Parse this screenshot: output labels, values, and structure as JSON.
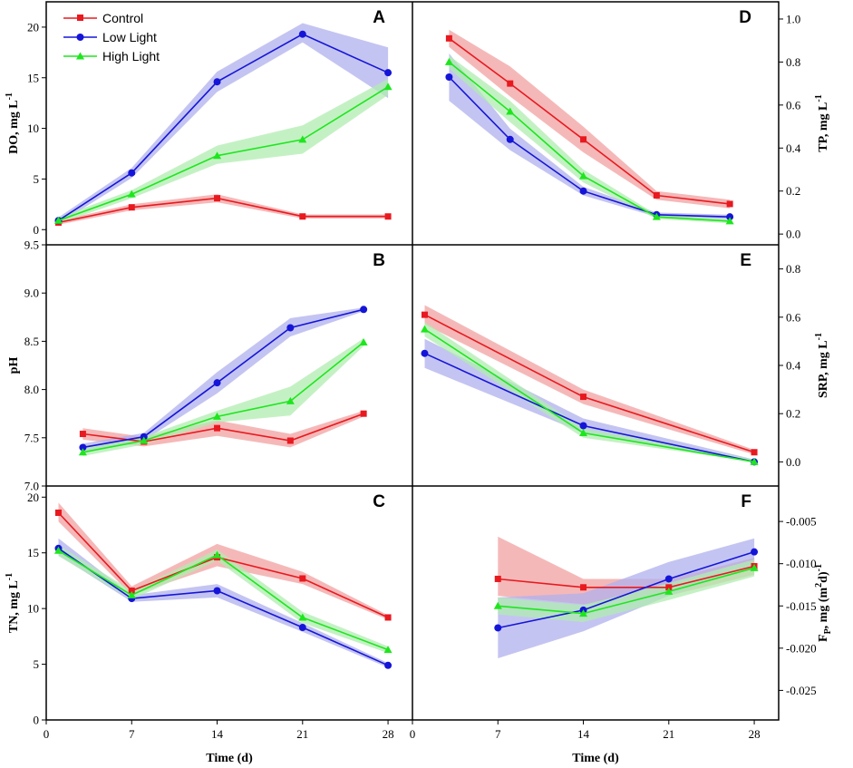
{
  "colors": {
    "control": "#e8191f",
    "low_light": "#1515d8",
    "high_light": "#1ee61e",
    "control_band": "#f2a0a0",
    "low_band": "#b0b0ee",
    "high_band": "#b0ecb0"
  },
  "legend": [
    "Control",
    "Low Light",
    "High Light"
  ],
  "chart_data": [
    {
      "type": "line",
      "panel": "A",
      "ylabel": "DO, mg L",
      "ylabel_sup": "-1",
      "ylim": [
        -1.5,
        22.5
      ],
      "yticks": [
        0,
        5,
        10,
        15,
        20
      ],
      "ytick_labels": [
        "0",
        "5",
        "10",
        "15",
        "20"
      ],
      "xlim": [
        0,
        30
      ],
      "xlabel": "",
      "series": [
        {
          "name": "Control",
          "marker": "square",
          "x": [
            1,
            7,
            14,
            21,
            28
          ],
          "y": [
            0.7,
            2.2,
            3.1,
            1.3,
            1.3
          ],
          "lo": [
            0.5,
            1.9,
            2.7,
            1.1,
            1.1
          ],
          "hi": [
            0.9,
            2.5,
            3.5,
            1.5,
            1.5
          ]
        },
        {
          "name": "Low Light",
          "marker": "circle",
          "x": [
            1,
            7,
            14,
            21,
            28
          ],
          "y": [
            0.9,
            5.6,
            14.6,
            19.3,
            15.5
          ],
          "lo": [
            0.6,
            5.1,
            13.6,
            18.5,
            13.0
          ],
          "hi": [
            1.2,
            6.1,
            15.6,
            20.4,
            18.0
          ]
        },
        {
          "name": "High Light",
          "marker": "triangle",
          "x": [
            1,
            7,
            14,
            21,
            28
          ],
          "y": [
            0.9,
            3.5,
            7.3,
            8.9,
            14.1
          ],
          "lo": [
            0.6,
            3.1,
            6.5,
            7.5,
            13.3
          ],
          "hi": [
            1.2,
            3.9,
            8.3,
            10.3,
            14.9
          ]
        }
      ]
    },
    {
      "type": "line",
      "panel": "B",
      "ylabel": "pH",
      "ylabel_sup": "",
      "ylim": [
        7.0,
        9.5
      ],
      "yticks": [
        7.0,
        7.5,
        8.0,
        8.5,
        9.0,
        9.5
      ],
      "ytick_labels": [
        "7.0",
        "7.5",
        "8.0",
        "8.5",
        "9.0",
        "9.5"
      ],
      "xlim": [
        0,
        30
      ],
      "xlabel": "",
      "series": [
        {
          "name": "Control",
          "marker": "square",
          "x": [
            3,
            8,
            14,
            20,
            26
          ],
          "y": [
            7.54,
            7.46,
            7.6,
            7.47,
            7.75
          ],
          "lo": [
            7.48,
            7.41,
            7.52,
            7.4,
            7.72
          ],
          "hi": [
            7.6,
            7.51,
            7.68,
            7.54,
            7.78
          ]
        },
        {
          "name": "Low Light",
          "marker": "circle",
          "x": [
            3,
            8,
            14,
            20,
            26
          ],
          "y": [
            7.4,
            7.51,
            8.07,
            8.64,
            8.83
          ],
          "lo": [
            7.36,
            7.47,
            7.96,
            8.55,
            8.81
          ],
          "hi": [
            7.44,
            7.55,
            8.18,
            8.74,
            8.85
          ]
        },
        {
          "name": "High Light",
          "marker": "triangle",
          "x": [
            3,
            8,
            14,
            20,
            26
          ],
          "y": [
            7.35,
            7.47,
            7.72,
            7.88,
            8.49
          ],
          "lo": [
            7.31,
            7.43,
            7.66,
            7.73,
            8.45
          ],
          "hi": [
            7.39,
            7.51,
            7.78,
            8.03,
            8.53
          ]
        }
      ]
    },
    {
      "type": "line",
      "panel": "C",
      "ylabel": "TN, mg L",
      "ylabel_sup": "-1",
      "ylim": [
        0,
        21
      ],
      "yticks": [
        0,
        5,
        10,
        15,
        20
      ],
      "ytick_labels": [
        "0",
        "5",
        "10",
        "15",
        "20"
      ],
      "xlim": [
        0,
        30
      ],
      "xlabel": "Time (d)",
      "xticks": [
        0,
        7,
        14,
        21,
        28
      ],
      "xtick_labels": [
        "0",
        "7",
        "14",
        "21",
        "28"
      ],
      "series": [
        {
          "name": "Control",
          "marker": "square",
          "x": [
            1,
            7,
            14,
            21,
            28
          ],
          "y": [
            18.6,
            11.6,
            14.6,
            12.7,
            9.2
          ],
          "lo": [
            17.8,
            11.2,
            13.8,
            12.2,
            9.0
          ],
          "hi": [
            19.5,
            12.0,
            15.8,
            13.3,
            9.4
          ]
        },
        {
          "name": "Low Light",
          "marker": "circle",
          "x": [
            1,
            7,
            14,
            21,
            28
          ],
          "y": [
            15.4,
            10.9,
            11.6,
            8.3,
            4.9
          ],
          "lo": [
            14.8,
            10.6,
            11.0,
            7.9,
            4.7
          ],
          "hi": [
            16.3,
            11.2,
            12.2,
            8.7,
            5.1
          ]
        },
        {
          "name": "High Light",
          "marker": "triangle",
          "x": [
            1,
            7,
            14,
            21,
            28
          ],
          "y": [
            15.2,
            11.2,
            14.8,
            9.2,
            6.3
          ],
          "lo": [
            14.7,
            10.8,
            14.3,
            8.7,
            6.0
          ],
          "hi": [
            15.7,
            11.6,
            15.3,
            9.7,
            6.6
          ]
        }
      ]
    },
    {
      "type": "line",
      "panel": "D",
      "ylabel": "TP, mg L",
      "ylabel_sup": "-1",
      "ylim": [
        -0.05,
        1.08
      ],
      "yticks": [
        0,
        0.2,
        0.4,
        0.6,
        0.8,
        1.0
      ],
      "ytick_labels": [
        "0.0",
        "0.2",
        "0.4",
        "0.6",
        "0.8",
        "1.0"
      ],
      "xlim": [
        0,
        30
      ],
      "xlabel": "",
      "series": [
        {
          "name": "Control",
          "marker": "square",
          "x": [
            3,
            8,
            14,
            20,
            26
          ],
          "y": [
            0.91,
            0.7,
            0.44,
            0.18,
            0.14
          ],
          "lo": [
            0.87,
            0.64,
            0.38,
            0.16,
            0.12
          ],
          "hi": [
            0.95,
            0.78,
            0.5,
            0.2,
            0.16
          ]
        },
        {
          "name": "Low Light",
          "marker": "circle",
          "x": [
            3,
            8,
            14,
            20,
            26
          ],
          "y": [
            0.73,
            0.44,
            0.2,
            0.09,
            0.08
          ],
          "lo": [
            0.62,
            0.39,
            0.18,
            0.08,
            0.07
          ],
          "hi": [
            0.84,
            0.49,
            0.22,
            0.1,
            0.09
          ]
        },
        {
          "name": "High Light",
          "marker": "triangle",
          "x": [
            3,
            8,
            14,
            20,
            26
          ],
          "y": [
            0.8,
            0.57,
            0.27,
            0.08,
            0.06
          ],
          "lo": [
            0.77,
            0.52,
            0.24,
            0.07,
            0.05
          ],
          "hi": [
            0.83,
            0.62,
            0.3,
            0.09,
            0.07
          ]
        }
      ]
    },
    {
      "type": "line",
      "panel": "E",
      "ylabel": "SRP, mg L",
      "ylabel_sup": "-1",
      "ylim": [
        -0.1,
        0.9
      ],
      "yticks": [
        0,
        0.2,
        0.4,
        0.6,
        0.8
      ],
      "ytick_labels": [
        "0.0",
        "0.2",
        "0.4",
        "0.6",
        "0.8"
      ],
      "xlim": [
        0,
        30
      ],
      "xlabel": "",
      "series": [
        {
          "name": "Control",
          "marker": "square",
          "x": [
            1,
            14,
            28
          ],
          "y": [
            0.61,
            0.27,
            0.04
          ],
          "lo": [
            0.57,
            0.24,
            0.03
          ],
          "hi": [
            0.65,
            0.3,
            0.05
          ]
        },
        {
          "name": "Low Light",
          "marker": "circle",
          "x": [
            1,
            14,
            28
          ],
          "y": [
            0.45,
            0.15,
            0.0
          ],
          "lo": [
            0.39,
            0.12,
            0.0
          ],
          "hi": [
            0.51,
            0.18,
            0.01
          ]
        },
        {
          "name": "High Light",
          "marker": "triangle",
          "x": [
            1,
            14,
            28
          ],
          "y": [
            0.55,
            0.12,
            0.0
          ],
          "lo": [
            0.52,
            0.1,
            0.0
          ],
          "hi": [
            0.58,
            0.14,
            0.01
          ]
        }
      ]
    },
    {
      "type": "line",
      "panel": "F",
      "ylabel": "F",
      "ylabel_sub": "P",
      "ylabel_rest": ", mg (m",
      "ylabel_sup": "2",
      "ylabel_end": "d)",
      "ylabel_sup2": "-1",
      "ylim": [
        -0.0285,
        -0.0008
      ],
      "yticks": [
        -0.025,
        -0.02,
        -0.015,
        -0.01,
        -0.005
      ],
      "ytick_labels": [
        "-0.025",
        "-0.020",
        "-0.015",
        "-0.010",
        "-0.005"
      ],
      "xlim": [
        0,
        30
      ],
      "xlabel": "Time (d)",
      "xticks": [
        0,
        7,
        14,
        21,
        28
      ],
      "xtick_labels": [
        "0",
        "7",
        "14",
        "21",
        "28"
      ],
      "series": [
        {
          "name": "Control",
          "marker": "square",
          "x": [
            7,
            14,
            21,
            28
          ],
          "y": [
            -0.0118,
            -0.0128,
            -0.0128,
            -0.0103
          ],
          "lo": [
            -0.0138,
            -0.0148,
            -0.0138,
            -0.0113
          ],
          "hi": [
            -0.0068,
            -0.0118,
            -0.0118,
            -0.0093
          ]
        },
        {
          "name": "Low Light",
          "marker": "circle",
          "x": [
            7,
            14,
            21,
            28
          ],
          "y": [
            -0.0176,
            -0.0155,
            -0.0118,
            -0.0086
          ],
          "lo": [
            -0.0212,
            -0.018,
            -0.0138,
            -0.0102
          ],
          "hi": [
            -0.014,
            -0.0135,
            -0.0098,
            -0.007
          ]
        },
        {
          "name": "High Light",
          "marker": "triangle",
          "x": [
            7,
            14,
            21,
            28
          ],
          "y": [
            -0.015,
            -0.0159,
            -0.0133,
            -0.0105
          ],
          "lo": [
            -0.016,
            -0.0169,
            -0.0143,
            -0.0115
          ],
          "hi": [
            -0.014,
            -0.0149,
            -0.0123,
            -0.0095
          ]
        }
      ]
    }
  ]
}
